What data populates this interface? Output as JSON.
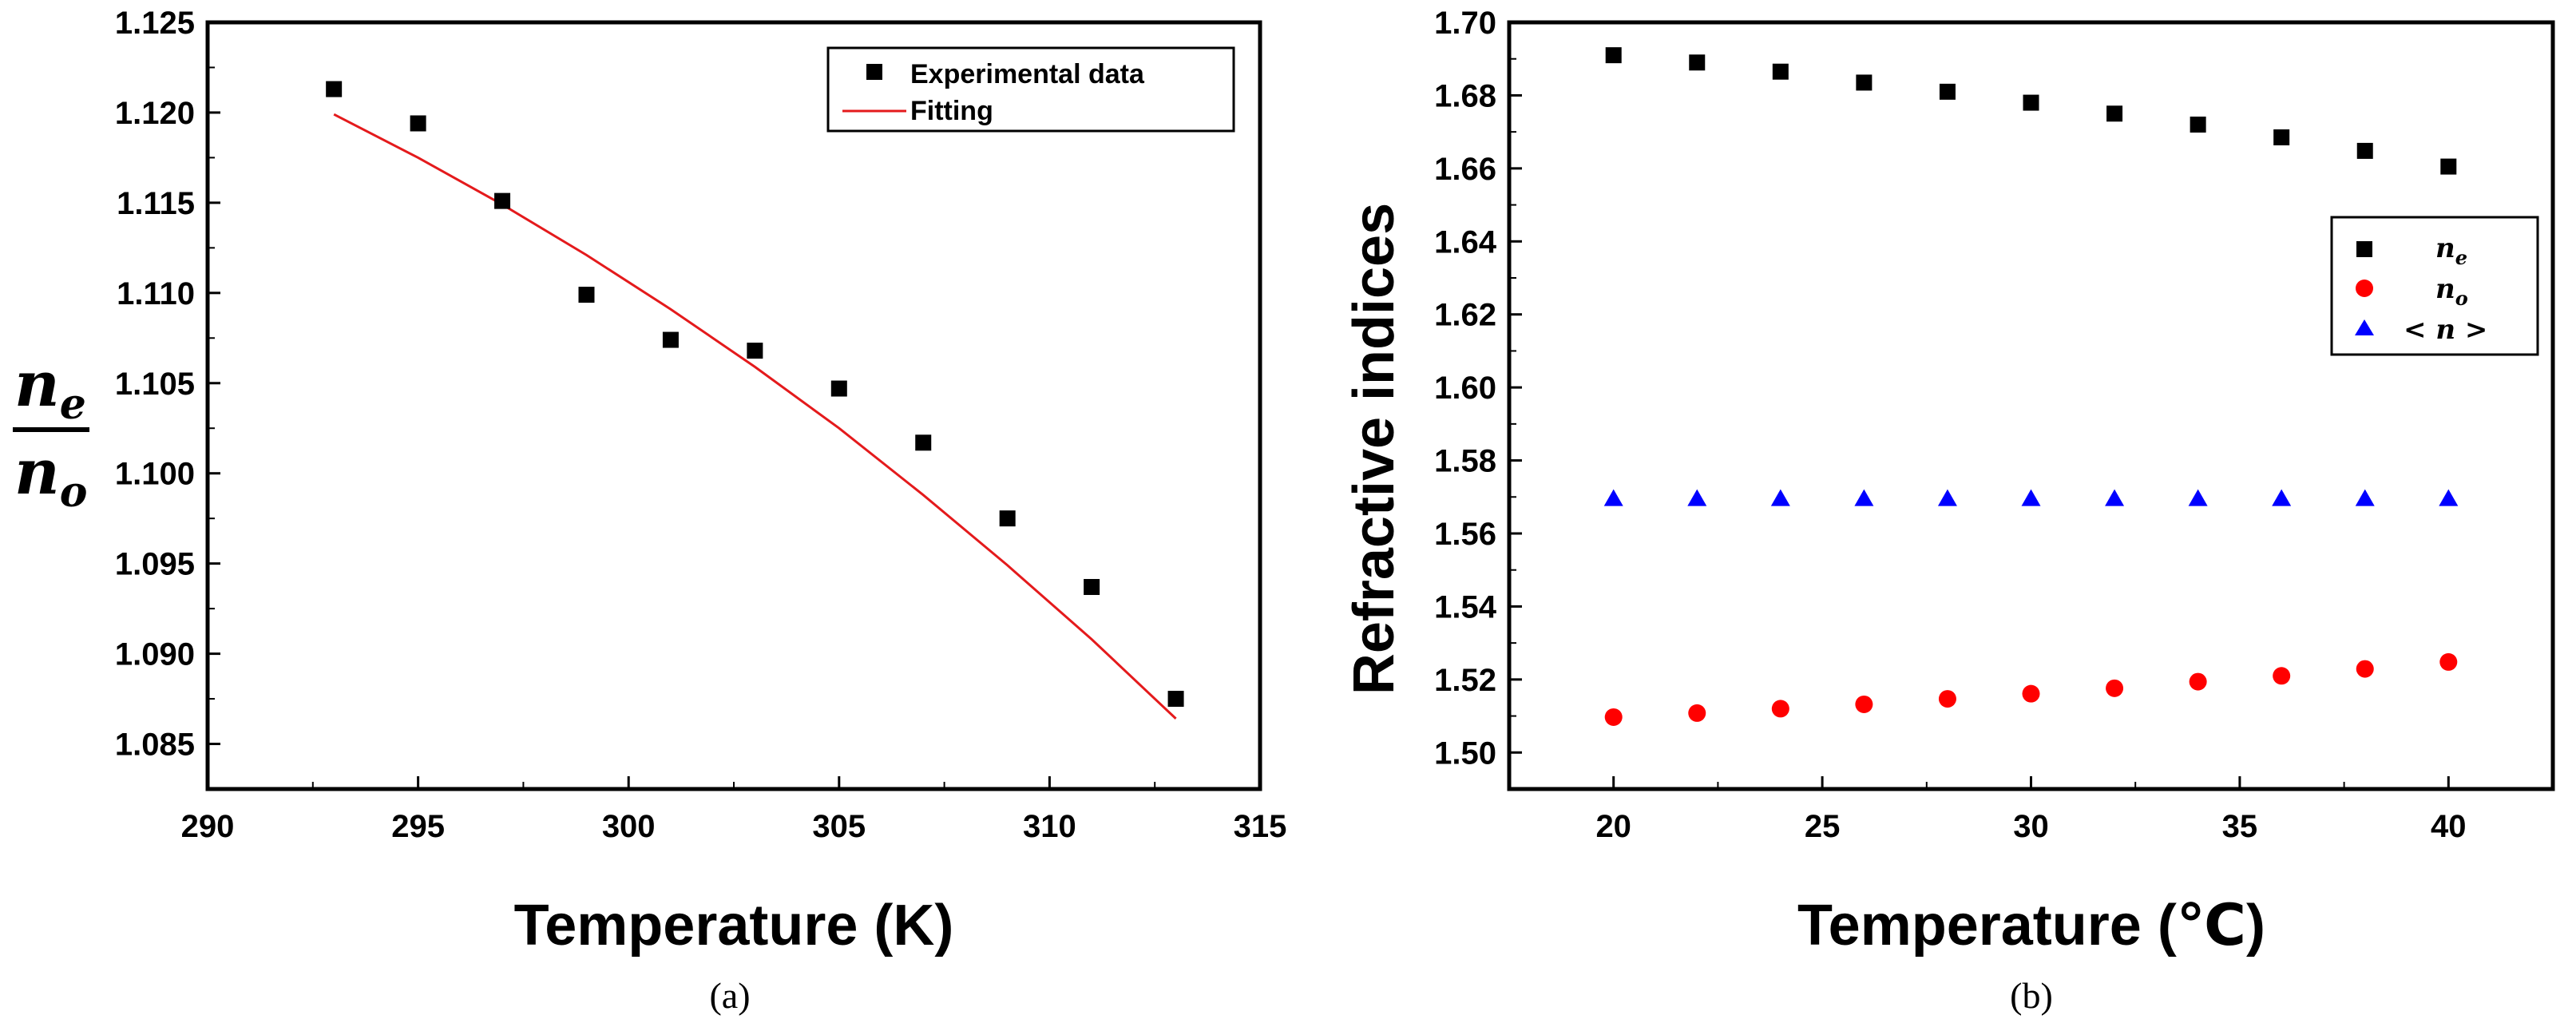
{
  "chart_data": [
    {
      "type": "scatter",
      "panel_label": "(a)",
      "title": "",
      "xlabel": "Temperature (K)",
      "ylabel": {
        "numerator": "n",
        "numerator_sub": "e",
        "denominator": "n",
        "denominator_sub": "o"
      },
      "xlim": [
        290,
        315
      ],
      "ylim": [
        1.0825,
        1.125
      ],
      "xticks": [
        290,
        295,
        300,
        305,
        310,
        315
      ],
      "xtick_labels": [
        "290",
        "295",
        "300",
        "305",
        "310",
        "315"
      ],
      "yticks": [
        1.085,
        1.09,
        1.095,
        1.1,
        1.105,
        1.11,
        1.115,
        1.12,
        1.125
      ],
      "ytick_labels": [
        "1.085",
        "1.090",
        "1.095",
        "1.100",
        "1.105",
        "1.110",
        "1.115",
        "1.120",
        "1.125"
      ],
      "grid": false,
      "legend_position": "top-right",
      "series": [
        {
          "name": "Experimental data",
          "kind": "scatter",
          "marker": "square",
          "color": "#000000",
          "x": [
            293,
            295,
            297,
            299,
            301,
            303,
            305,
            307,
            309,
            311,
            313
          ],
          "y": [
            1.1213,
            1.1194,
            1.1151,
            1.1099,
            1.1074,
            1.1068,
            1.1047,
            1.1017,
            1.0975,
            1.0937,
            1.0875
          ]
        },
        {
          "name": "Fitting",
          "kind": "line",
          "color": "#e41a1c",
          "x": [
            293,
            295,
            297,
            299,
            301,
            303,
            305,
            307,
            309,
            311,
            313
          ],
          "y": [
            1.1199,
            1.1175,
            1.1149,
            1.1121,
            1.1091,
            1.1059,
            1.1025,
            1.0988,
            1.0949,
            1.0908,
            1.0864
          ]
        }
      ]
    },
    {
      "type": "scatter",
      "panel_label": "(b)",
      "title": "",
      "xlabel": "Temperature (℃)",
      "ylabel": "Refractive indices",
      "xlim": [
        17.5,
        42.5
      ],
      "ylim": [
        1.49,
        1.7
      ],
      "xticks": [
        20,
        25,
        30,
        35,
        40
      ],
      "xtick_labels": [
        "20",
        "25",
        "30",
        "35",
        "40"
      ],
      "yticks": [
        1.5,
        1.52,
        1.54,
        1.56,
        1.58,
        1.6,
        1.62,
        1.64,
        1.66,
        1.68,
        1.7
      ],
      "ytick_labels": [
        "1.50",
        "1.52",
        "1.54",
        "1.56",
        "1.58",
        "1.60",
        "1.62",
        "1.64",
        "1.66",
        "1.68",
        "1.70"
      ],
      "grid": false,
      "legend_position": "right",
      "series": [
        {
          "name": "n_e",
          "label_main": "n",
          "label_sub": "e",
          "marker": "square",
          "color": "#000000",
          "x": [
            20,
            22,
            24,
            26,
            28,
            30,
            32,
            34,
            36,
            38,
            40
          ],
          "y": [
            1.691,
            1.689,
            1.6865,
            1.6835,
            1.681,
            1.678,
            1.675,
            1.672,
            1.6685,
            1.6648,
            1.6605
          ]
        },
        {
          "name": "n_o",
          "label_main": "n",
          "label_sub": "o",
          "marker": "circle",
          "color": "#ff0000",
          "x": [
            20,
            22,
            24,
            26,
            28,
            30,
            32,
            34,
            36,
            38,
            40
          ],
          "y": [
            1.5097,
            1.5108,
            1.512,
            1.5132,
            1.5147,
            1.5161,
            1.5176,
            1.5194,
            1.521,
            1.5229,
            1.5248
          ]
        },
        {
          "name": "<n>",
          "label_main": "< n >",
          "label_sub": "",
          "marker": "triangle",
          "color": "#0000ff",
          "x": [
            20,
            22,
            24,
            26,
            28,
            30,
            32,
            34,
            36,
            38,
            40
          ],
          "y": [
            1.5695,
            1.5695,
            1.5695,
            1.5695,
            1.5695,
            1.5695,
            1.5695,
            1.5695,
            1.5695,
            1.5695,
            1.5695
          ]
        }
      ]
    }
  ]
}
